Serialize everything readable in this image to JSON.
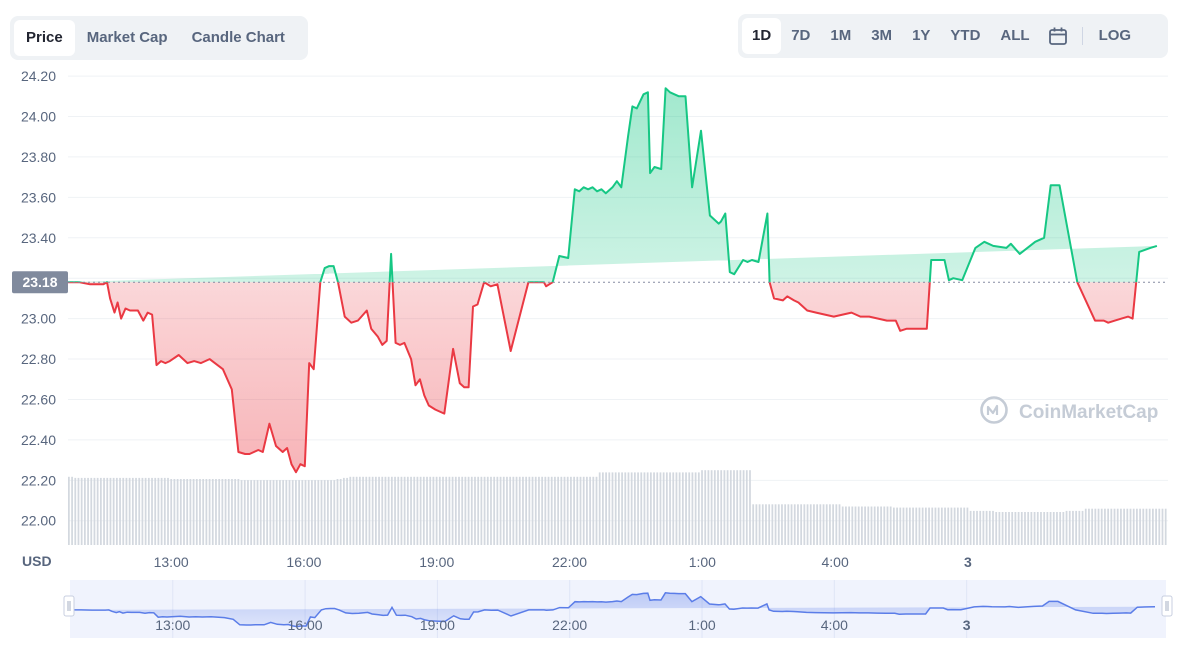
{
  "tabs": [
    {
      "label": "Price",
      "active": true
    },
    {
      "label": "Market Cap",
      "active": false
    },
    {
      "label": "Candle Chart",
      "active": false
    }
  ],
  "ranges": [
    {
      "label": "1D",
      "active": true
    },
    {
      "label": "7D",
      "active": false
    },
    {
      "label": "1M",
      "active": false
    },
    {
      "label": "3M",
      "active": false
    },
    {
      "label": "1Y",
      "active": false
    },
    {
      "label": "YTD",
      "active": false
    },
    {
      "label": "ALL",
      "active": false
    }
  ],
  "calendar_icon": "calendar-icon",
  "log_label": "LOG",
  "watermark": "CoinMarketCap",
  "colors": {
    "up": "#16c784",
    "down": "#ea3943",
    "navigator": "#5b7de8"
  },
  "chart_data": {
    "type": "line",
    "currency_label": "USD",
    "baseline": 23.18,
    "baseline_label": "23.18",
    "ylim": [
      21.88,
      24.24
    ],
    "y_ticks": [
      "24.20",
      "24.00",
      "23.80",
      "23.60",
      "23.40",
      "23.20",
      "23.00",
      "22.80",
      "22.60",
      "22.40",
      "22.20",
      "22.00"
    ],
    "x_ticks": [
      "13:00",
      "16:00",
      "19:00",
      "22:00",
      "1:00",
      "4:00",
      "3"
    ],
    "time_range": [
      "10:40",
      "11:30 (+1 day)"
    ],
    "x_tick_times": [
      2.33,
      5.33,
      8.33,
      11.33,
      14.33,
      17.33,
      20.33
    ],
    "series": [
      {
        "t": [
          0.0,
          0.25,
          0.5,
          0.8,
          0.88,
          0.95,
          1.05,
          1.12,
          1.2,
          1.3,
          1.4,
          1.5,
          1.58,
          1.7,
          1.8,
          1.9,
          2.0,
          2.1,
          2.2,
          2.3,
          2.5,
          2.7,
          2.85,
          3.0,
          3.2,
          3.5,
          3.7,
          3.85,
          4.0,
          4.1,
          4.2,
          4.3,
          4.4,
          4.55,
          4.7,
          4.85,
          4.95,
          5.05,
          5.15,
          5.25,
          5.35,
          5.45,
          5.55,
          5.7,
          5.8,
          5.9,
          6.0,
          6.1,
          6.25,
          6.4,
          6.55,
          6.75,
          6.85,
          7.0,
          7.1,
          7.2,
          7.3,
          7.4,
          7.5,
          7.6,
          7.75,
          7.85,
          7.95,
          8.05,
          8.15,
          8.3,
          8.5,
          8.7,
          8.85,
          8.95,
          9.05,
          9.15,
          9.25,
          9.4,
          9.55,
          9.7,
          10.0,
          10.4,
          10.7,
          10.75,
          10.8,
          10.95,
          11.1,
          11.3,
          11.45,
          11.55,
          11.65,
          11.75,
          11.85,
          11.95,
          12.05,
          12.15,
          12.3,
          12.4,
          12.5,
          12.65,
          12.75,
          12.85,
          13.0,
          13.1,
          13.15,
          13.25,
          13.4,
          13.5,
          13.6,
          13.7,
          13.8,
          13.95,
          14.1,
          14.3,
          14.5,
          14.7,
          14.75,
          14.85,
          14.95,
          15.05,
          15.25,
          15.35,
          15.45,
          15.6,
          15.8,
          15.85,
          15.95,
          16.15,
          16.25,
          16.4,
          16.5,
          16.7,
          16.9,
          17.1,
          17.3,
          17.5,
          17.7,
          17.9,
          18.1,
          18.3,
          18.5,
          18.7,
          18.8,
          18.95,
          19.4,
          19.5,
          19.6,
          19.8,
          19.9,
          20.0,
          20.2,
          20.5,
          20.7,
          20.8,
          20.9,
          21.2,
          21.3,
          21.5,
          21.85,
          22.05,
          22.2,
          22.3,
          22.4,
          22.8,
          23.2,
          23.4,
          23.5,
          23.65,
          23.8,
          23.95,
          24.05,
          24.2,
          24.45,
          24.6,
          24.75,
          24.85
        ],
        "v": [
          23.18,
          23.18,
          23.17,
          23.17,
          23.18,
          23.1,
          23.03,
          23.08,
          23.0,
          23.05,
          23.04,
          23.04,
          23.04,
          22.99,
          23.03,
          23.02,
          22.77,
          22.79,
          22.78,
          22.79,
          22.82,
          22.78,
          22.79,
          22.78,
          22.8,
          22.75,
          22.65,
          22.34,
          22.33,
          22.33,
          22.34,
          22.35,
          22.34,
          22.48,
          22.37,
          22.34,
          22.36,
          22.28,
          22.24,
          22.28,
          22.27,
          22.78,
          22.75,
          23.18,
          23.25,
          23.26,
          23.26,
          23.18,
          23.01,
          22.98,
          22.99,
          23.04,
          22.95,
          22.91,
          22.87,
          22.89,
          23.32,
          22.88,
          22.87,
          22.88,
          22.8,
          22.67,
          22.7,
          22.62,
          22.57,
          22.55,
          22.53,
          22.85,
          22.68,
          22.66,
          22.66,
          23.06,
          23.07,
          23.18,
          23.16,
          23.17,
          22.84,
          23.18,
          23.18,
          23.18,
          23.16,
          23.18,
          23.31,
          23.3,
          23.64,
          23.63,
          23.65,
          23.64,
          23.65,
          23.63,
          23.64,
          23.62,
          23.65,
          23.68,
          23.65,
          23.9,
          24.05,
          24.04,
          24.11,
          24.12,
          23.72,
          23.75,
          23.74,
          24.14,
          24.12,
          24.11,
          24.1,
          24.1,
          23.65,
          23.93,
          23.51,
          23.47,
          23.48,
          23.52,
          23.23,
          23.22,
          23.29,
          23.28,
          23.29,
          23.28,
          23.52,
          23.18,
          23.1,
          23.09,
          23.11,
          23.09,
          23.08,
          23.04,
          23.03,
          23.02,
          23.01,
          23.02,
          23.03,
          23.01,
          23.01,
          23.0,
          22.99,
          22.99,
          22.94,
          22.95,
          22.95,
          23.29,
          23.29,
          23.29,
          23.19,
          23.2,
          23.19,
          23.35,
          23.38,
          23.37,
          23.36,
          23.35,
          23.37,
          23.32,
          23.38,
          23.4,
          23.66,
          23.66,
          23.66,
          23.18,
          22.99,
          22.99,
          22.98,
          22.99,
          23.0,
          23.01,
          23.0,
          23.33,
          23.35,
          23.36
        ],
        "volume": [
          0.62,
          0.61,
          0.61,
          0.61,
          0.61,
          0.61,
          0.61,
          0.61,
          0.61,
          0.61,
          0.61,
          0.61,
          0.61,
          0.61,
          0.61,
          0.61,
          0.6,
          0.6,
          0.6,
          0.6,
          0.6,
          0.6,
          0.6,
          0.6,
          0.6,
          0.6,
          0.6,
          0.59,
          0.59,
          0.59,
          0.59,
          0.59,
          0.59,
          0.59,
          0.59,
          0.59,
          0.59,
          0.59,
          0.59,
          0.59,
          0.59,
          0.59,
          0.6,
          0.61,
          0.62,
          0.62,
          0.62,
          0.62,
          0.62,
          0.62,
          0.62,
          0.62,
          0.62,
          0.62,
          0.62,
          0.62,
          0.62,
          0.62,
          0.62,
          0.62,
          0.62,
          0.62,
          0.62,
          0.62,
          0.62,
          0.62,
          0.62,
          0.62,
          0.62,
          0.62,
          0.62,
          0.62,
          0.62,
          0.62,
          0.62,
          0.62,
          0.62,
          0.62,
          0.62,
          0.62,
          0.62,
          0.62,
          0.62,
          0.66,
          0.66,
          0.66,
          0.66,
          0.66,
          0.66,
          0.66,
          0.66,
          0.66,
          0.66,
          0.66,
          0.66,
          0.66,
          0.66,
          0.66,
          0.66,
          0.68,
          0.68,
          0.68,
          0.68,
          0.68,
          0.68,
          0.68,
          0.68,
          0.37,
          0.37,
          0.37,
          0.37,
          0.37,
          0.37,
          0.37,
          0.37,
          0.37,
          0.37,
          0.37,
          0.37,
          0.37,
          0.37,
          0.35,
          0.35,
          0.35,
          0.35,
          0.35,
          0.35,
          0.35,
          0.35,
          0.34,
          0.34,
          0.34,
          0.34,
          0.34,
          0.34,
          0.34,
          0.34,
          0.34,
          0.34,
          0.34,
          0.34,
          0.31,
          0.31,
          0.31,
          0.31,
          0.3,
          0.3,
          0.3,
          0.3,
          0.3,
          0.3,
          0.3,
          0.3,
          0.3,
          0.3,
          0.3,
          0.31,
          0.31,
          0.31,
          0.33,
          0.33,
          0.33,
          0.33,
          0.33,
          0.33,
          0.33,
          0.33,
          0.33,
          0.33,
          0.33,
          0.33,
          0.33
        ]
      }
    ]
  }
}
